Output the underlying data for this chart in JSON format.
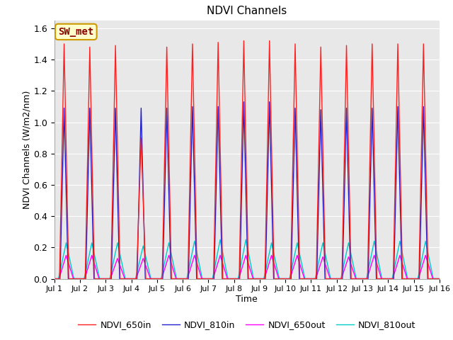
{
  "title": "NDVI Channels",
  "xlabel": "Time",
  "ylabel": "NDVI Channels (W/m2/nm)",
  "xlim": [
    0,
    15
  ],
  "ylim": [
    0,
    1.65
  ],
  "yticks": [
    0.0,
    0.2,
    0.4,
    0.6,
    0.8,
    1.0,
    1.2,
    1.4,
    1.6
  ],
  "xtick_labels": [
    "Jul 1",
    "Jul 2",
    "Jul 3",
    "Jul 4",
    "Jul 5",
    "Jul 6",
    "Jul 7",
    "Jul 8",
    "Jul 9",
    "Jul 10",
    "Jul 11",
    "Jul 12",
    "Jul 13",
    "Jul 14",
    "Jul 15",
    "Jul 16"
  ],
  "annotation_text": "SW_met",
  "annotation_bg": "#ffffcc",
  "annotation_border": "#cc9900",
  "annotation_text_color": "#8b0000",
  "line_colors": {
    "NDVI_650in": "#ff2020",
    "NDVI_810in": "#2020cc",
    "NDVI_650out": "#ff00ff",
    "NDVI_810out": "#00cccc"
  },
  "line_widths": {
    "NDVI_650in": 1.0,
    "NDVI_810in": 1.0,
    "NDVI_650out": 1.0,
    "NDVI_810out": 1.0
  },
  "peaks_650in": [
    1.5,
    1.48,
    1.49,
    0.9,
    1.48,
    1.5,
    1.51,
    1.52,
    1.52,
    1.5,
    1.48,
    1.49,
    1.5,
    1.5,
    1.5
  ],
  "peaks_810in": [
    1.09,
    1.09,
    1.09,
    1.09,
    1.09,
    1.1,
    1.1,
    1.13,
    1.13,
    1.09,
    1.08,
    1.09,
    1.09,
    1.1,
    1.1
  ],
  "peaks_650out": [
    0.15,
    0.15,
    0.13,
    0.13,
    0.15,
    0.15,
    0.15,
    0.15,
    0.15,
    0.15,
    0.14,
    0.14,
    0.15,
    0.15,
    0.15
  ],
  "peaks_810out": [
    0.23,
    0.23,
    0.23,
    0.21,
    0.23,
    0.24,
    0.25,
    0.25,
    0.23,
    0.23,
    0.23,
    0.23,
    0.24,
    0.24,
    0.24
  ],
  "background_color": "#e8e8e8",
  "grid_color": "#ffffff",
  "fig_bg": "#ffffff",
  "figsize": [
    6.4,
    4.8
  ],
  "dpi": 100
}
